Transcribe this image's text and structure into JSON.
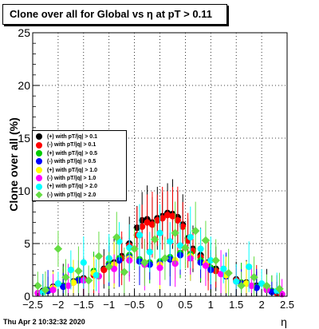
{
  "title": "Clone  over all for Global vs   η at pT > 0.11",
  "footer": "Thu Apr  2 10:32:32 2020",
  "chart_data": {
    "type": "scatter",
    "ylabel": "Clone  over all (%)",
    "xlabel": "η",
    "xlim": [
      -2.5,
      2.5
    ],
    "ylim": [
      0,
      25
    ],
    "x_ticks": [
      "−2.5",
      "−2",
      "−1.5",
      "−1",
      "−0.5",
      "0",
      "0.5",
      "1",
      "1.5",
      "2",
      "2.5"
    ],
    "y_ticks": [
      "0",
      "5",
      "10",
      "15",
      "20",
      "25"
    ],
    "grid": true,
    "legend_position": "left",
    "series": [
      {
        "name": "(+) with pT/|q| > 0.1",
        "color": "#000000",
        "marker": "circle",
        "x": [
          -2.3,
          -2.1,
          -1.9,
          -1.7,
          -1.5,
          -1.3,
          -1.1,
          -0.9,
          -0.75,
          -0.6,
          -0.45,
          -0.35,
          -0.25,
          -0.15,
          -0.05,
          0.05,
          0.15,
          0.25,
          0.35,
          0.45,
          0.55,
          0.65,
          0.8,
          0.95,
          1.1,
          1.3,
          1.5,
          1.7,
          1.9,
          2.1,
          2.3
        ],
        "y": [
          0.5,
          0.9,
          1.0,
          1.4,
          1.7,
          2.1,
          2.6,
          3.2,
          3.8,
          5.0,
          6.5,
          7.2,
          7.3,
          7.0,
          7.4,
          7.6,
          7.9,
          7.8,
          7.5,
          6.8,
          5.5,
          4.5,
          3.9,
          3.2,
          2.6,
          2.0,
          1.6,
          1.3,
          1.0,
          0.8,
          0.4
        ]
      },
      {
        "name": "(-) with pT/|q| > 0.1",
        "color": "#ff0000",
        "marker": "circle",
        "x": [
          -2.3,
          -2.1,
          -1.9,
          -1.7,
          -1.5,
          -1.3,
          -1.1,
          -0.9,
          -0.75,
          -0.6,
          -0.45,
          -0.35,
          -0.25,
          -0.15,
          -0.05,
          0.05,
          0.15,
          0.25,
          0.35,
          0.45,
          0.55,
          0.65,
          0.8,
          0.95,
          1.1,
          1.3,
          1.5,
          1.7,
          1.9,
          2.1,
          2.3
        ],
        "y": [
          0.4,
          0.8,
          1.0,
          1.3,
          1.6,
          2.0,
          2.5,
          3.0,
          3.6,
          4.8,
          5.8,
          6.6,
          7.0,
          6.8,
          7.2,
          7.4,
          7.7,
          7.6,
          7.2,
          6.6,
          5.3,
          4.3,
          3.7,
          3.0,
          2.4,
          1.9,
          1.5,
          1.2,
          0.9,
          0.7,
          0.3
        ]
      },
      {
        "name": "(+) with pT/|q| > 0.5",
        "color": "#00cc00",
        "marker": "circle",
        "x": [
          -2.2,
          -1.9,
          -1.6,
          -1.3,
          -1.0,
          -0.8,
          -0.6,
          -0.4,
          -0.2,
          0.0,
          0.2,
          0.4,
          0.6,
          0.8,
          1.0,
          1.3,
          1.6,
          1.9,
          2.2
        ],
        "y": [
          0.6,
          1.0,
          1.6,
          2.4,
          3.1,
          3.6,
          3.9,
          3.5,
          3.2,
          3.3,
          3.7,
          4.1,
          4.0,
          3.4,
          2.7,
          2.0,
          1.3,
          0.9,
          0.5
        ]
      },
      {
        "name": "(-) with pT/|q| > 0.5",
        "color": "#0000ff",
        "marker": "circle",
        "x": [
          -2.2,
          -1.9,
          -1.6,
          -1.3,
          -1.0,
          -0.8,
          -0.6,
          -0.4,
          -0.2,
          0.0,
          0.2,
          0.4,
          0.6,
          0.8,
          1.0,
          1.3,
          1.6,
          1.9,
          2.2
        ],
        "y": [
          0.5,
          0.9,
          1.5,
          2.2,
          2.9,
          3.4,
          3.7,
          3.3,
          3.0,
          3.1,
          3.5,
          3.9,
          3.8,
          3.2,
          2.5,
          1.9,
          1.2,
          0.8,
          0.4
        ]
      },
      {
        "name": "(+) with pT/|q| > 1.0",
        "color": "#ffff00",
        "marker": "circle",
        "x": [
          -2.1,
          -1.7,
          -1.3,
          -0.9,
          -0.6,
          -0.3,
          0.0,
          0.3,
          0.6,
          0.9,
          1.3,
          1.7,
          2.1
        ],
        "y": [
          0.8,
          1.3,
          2.2,
          3.0,
          3.6,
          3.2,
          3.0,
          3.4,
          3.8,
          3.1,
          2.0,
          1.2,
          0.7
        ]
      },
      {
        "name": "(-) with pT/|q| > 1.0",
        "color": "#ff00ff",
        "marker": "circle",
        "x": [
          -2.4,
          -2.1,
          -1.8,
          -1.5,
          -1.2,
          -0.9,
          -0.6,
          -0.3,
          0.0,
          0.3,
          0.6,
          0.9,
          1.2,
          1.5,
          1.8,
          2.1,
          2.4
        ],
        "y": [
          0.3,
          0.6,
          1.0,
          1.5,
          1.9,
          2.6,
          3.4,
          3.0,
          2.7,
          3.1,
          3.6,
          2.9,
          2.1,
          1.4,
          1.0,
          0.6,
          0.2
        ]
      },
      {
        "name": "(+) with pT/|q| > 2.0",
        "color": "#00ffff",
        "marker": "circle",
        "x": [
          -2.3,
          -2.0,
          -1.75,
          -1.5,
          -1.25,
          -1.0,
          -0.8,
          -0.6,
          -0.4,
          -0.2,
          0.0,
          0.2,
          0.4,
          0.6,
          0.8,
          1.0,
          1.25,
          1.5,
          1.75,
          2.0,
          2.3
        ],
        "y": [
          0.4,
          1.2,
          2.5,
          3.2,
          2.0,
          3.6,
          5.2,
          4.6,
          5.8,
          4.2,
          6.0,
          5.2,
          4.8,
          5.6,
          4.5,
          3.4,
          2.6,
          1.4,
          2.8,
          1.2,
          0.5
        ]
      },
      {
        "name": "(-) with pT/|q| > 2.0",
        "color": "#66dd44",
        "marker": "diamond",
        "x": [
          -2.4,
          -2.25,
          -2.0,
          -1.85,
          -1.6,
          -1.4,
          -1.2,
          -1.0,
          -0.85,
          -0.7,
          -0.5,
          -0.3,
          -0.1,
          0.1,
          0.3,
          0.5,
          0.7,
          0.9,
          1.1,
          1.35,
          1.6,
          1.85,
          2.1,
          2.35
        ],
        "y": [
          1.0,
          0.6,
          4.5,
          1.8,
          2.4,
          1.5,
          3.8,
          2.8,
          5.6,
          2.3,
          4.5,
          3.2,
          5.4,
          3.6,
          6.0,
          4.6,
          6.2,
          5.3,
          3.4,
          2.2,
          1.0,
          1.8,
          1.0,
          0.7
        ]
      }
    ]
  }
}
